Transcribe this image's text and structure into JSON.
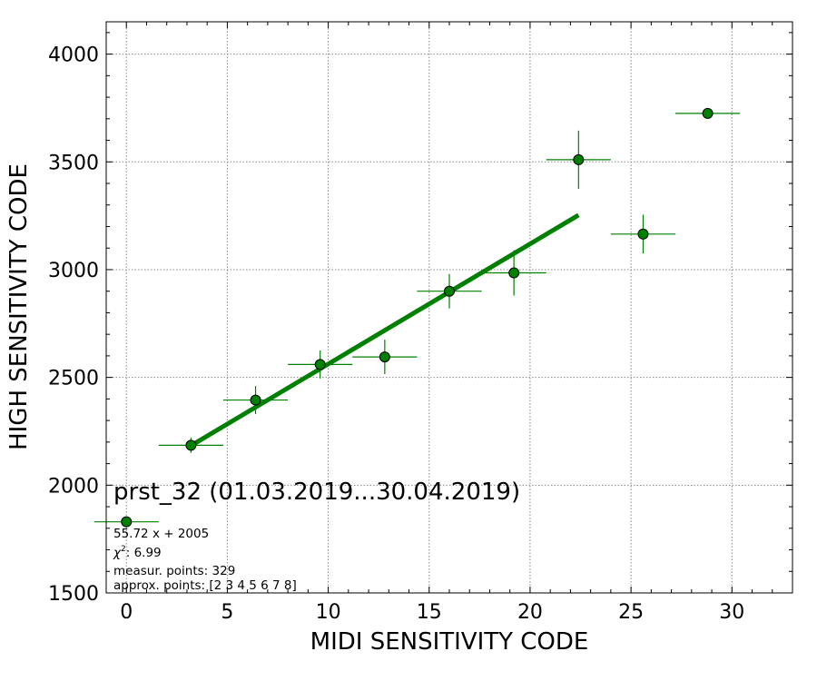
{
  "chart_data": {
    "type": "scatter",
    "title": "prst_32 (01.03.2019...30.04.2019)",
    "xlabel": "MIDI SENSITIVITY CODE",
    "ylabel": "HIGH SENSITIVITY CODE",
    "xlim": [
      -1,
      33
    ],
    "ylim": [
      1500,
      4150
    ],
    "xticks": [
      0,
      5,
      10,
      15,
      20,
      25,
      30
    ],
    "yticks": [
      1500,
      2000,
      2500,
      3000,
      3500,
      4000
    ],
    "grid": true,
    "colors": {
      "marker": "#008000",
      "fit": "#008000",
      "errorbar": "#008000"
    },
    "points": [
      {
        "x": 0.0,
        "y": 1830,
        "xerr": 1.6,
        "yerr": 0
      },
      {
        "x": 3.2,
        "y": 2185,
        "xerr": 1.6,
        "yerr": 35
      },
      {
        "x": 6.4,
        "y": 2395,
        "xerr": 1.6,
        "yerr": 65
      },
      {
        "x": 9.6,
        "y": 2560,
        "xerr": 1.6,
        "yerr": 65
      },
      {
        "x": 12.8,
        "y": 2595,
        "xerr": 1.6,
        "yerr": 80
      },
      {
        "x": 16.0,
        "y": 2900,
        "xerr": 1.6,
        "yerr": 80
      },
      {
        "x": 19.2,
        "y": 2985,
        "xerr": 1.6,
        "yerr": 105
      },
      {
        "x": 22.4,
        "y": 3510,
        "xerr": 1.6,
        "yerr": 135
      },
      {
        "x": 25.6,
        "y": 3165,
        "xerr": 1.6,
        "yerr": 90
      },
      {
        "x": 28.8,
        "y": 3725,
        "xerr": 1.6,
        "yerr": 0
      }
    ],
    "fit": {
      "slope": 55.72,
      "intercept": 2005,
      "x_range": [
        3.2,
        22.4
      ]
    },
    "annotations": {
      "fit_label": "55.72 x + 2005",
      "chi2_label": "χ",
      "chi2_power": "2",
      "chi2_value": ": 6.99",
      "measured_points": "measur. points: 329",
      "approx_points": "approx. points: [2 3 4 5 6 7 8]"
    }
  }
}
